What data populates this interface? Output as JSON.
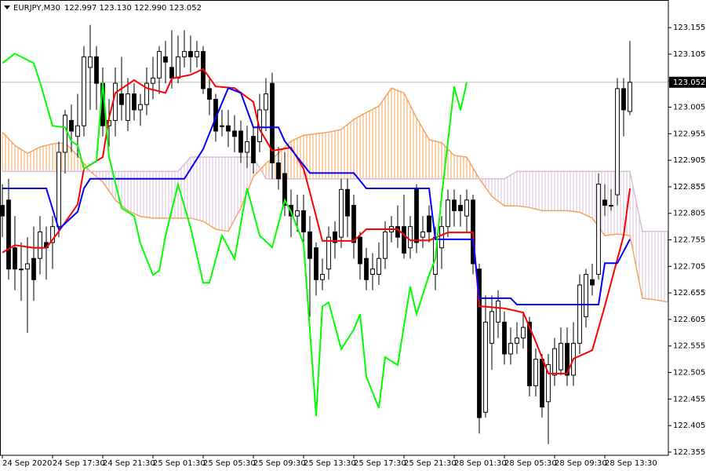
{
  "chart_data": {
    "type": "candlestick",
    "title": "EURJPY,M30",
    "info": "122.997 123.130 122.990 123.052",
    "up_color": "#ffffff",
    "down_color": "#000000",
    "wick_color": "#000000",
    "grid": false,
    "xlim": [
      -0.375,
      106.125
    ],
    "ylim": [
      122.349,
      123.207
    ],
    "yticks": [
      123.155,
      123.105,
      123.055,
      123.005,
      122.955,
      122.905,
      122.855,
      122.805,
      122.755,
      122.705,
      122.655,
      122.605,
      122.555,
      122.505,
      122.455,
      122.405,
      122.355
    ],
    "xticks": [
      {
        "value": 0,
        "label": "24 Sep 2020"
      },
      {
        "value": 8,
        "label": "24 Sep 17:30"
      },
      {
        "value": 16,
        "label": "24 Sep 21:30"
      },
      {
        "value": 24,
        "label": "25 Sep 01:30"
      },
      {
        "value": 32,
        "label": "25 Sep 05:30"
      },
      {
        "value": 40,
        "label": "25 Sep 09:30"
      },
      {
        "value": 48,
        "label": "25 Sep 13:30"
      },
      {
        "value": 56,
        "label": "25 Sep 17:30"
      },
      {
        "value": 64,
        "label": "25 Sep 21:30"
      },
      {
        "value": 72,
        "label": "28 Sep 01:30"
      },
      {
        "value": 80,
        "label": "28 Sep 05:30"
      },
      {
        "value": 88,
        "label": "28 Sep 09:30"
      },
      {
        "value": 96,
        "label": "28 Sep 13:30"
      }
    ],
    "price_line": {
      "value": 123.052,
      "color": "#c0c0c0"
    },
    "x": [
      0,
      1,
      2,
      3,
      4,
      5,
      6,
      7,
      8,
      9,
      10,
      11,
      12,
      13,
      14,
      15,
      16,
      17,
      18,
      19,
      20,
      21,
      22,
      23,
      24,
      25,
      26,
      27,
      28,
      29,
      30,
      31,
      32,
      33,
      34,
      35,
      36,
      37,
      38,
      39,
      40,
      41,
      42,
      43,
      44,
      45,
      46,
      47,
      48,
      49,
      50,
      51,
      52,
      53,
      54,
      55,
      56,
      57,
      58,
      59,
      60,
      61,
      62,
      63,
      64,
      65,
      66,
      67,
      68,
      69,
      70,
      71,
      72,
      73,
      74,
      75,
      76,
      77,
      78,
      79,
      80,
      81,
      82,
      83,
      84,
      85,
      86,
      87,
      88,
      89,
      90,
      91,
      92,
      93,
      94,
      95,
      96,
      97,
      98,
      99,
      100
    ],
    "open": [
      122.82,
      122.83,
      122.74,
      122.7,
      122.7,
      122.72,
      122.72,
      122.75,
      122.75,
      122.78,
      122.92,
      122.98,
      122.95,
      122.97,
      123.08,
      123.1,
      123.05,
      122.97,
      122.98,
      123.03,
      122.98,
      123.03,
      123.0,
      123.01,
      123.05,
      123.06,
      123.1,
      123.08,
      123.06,
      123.1,
      123.11,
      123.1,
      123.11,
      123.04,
      123.02,
      122.97,
      122.97,
      122.96,
      122.96,
      122.92,
      122.95,
      122.94,
      123.0,
      123.05,
      122.9,
      122.88,
      122.82,
      122.8,
      122.81,
      122.77,
      122.74,
      122.68,
      122.7,
      122.77,
      122.76,
      122.85,
      122.82,
      122.76,
      122.72,
      122.69,
      122.69,
      122.72,
      122.77,
      122.78,
      122.78,
      122.74,
      122.85,
      122.76,
      122.8,
      122.69,
      122.74,
      122.78,
      122.83,
      122.82,
      122.8,
      122.83,
      122.7,
      122.43,
      122.56,
      122.6,
      122.6,
      122.54,
      122.56,
      122.57,
      122.6,
      122.48,
      122.53,
      122.45,
      122.5,
      122.51,
      122.56,
      122.5,
      122.56,
      122.61,
      122.68,
      122.69,
      122.83,
      122.82,
      122.84,
      123.04,
      122.997
    ],
    "high": [
      122.86,
      122.87,
      122.8,
      122.75,
      122.76,
      122.78,
      122.8,
      122.78,
      122.8,
      122.94,
      123.0,
      123.01,
      123.03,
      123.12,
      123.16,
      123.12,
      123.08,
      123.02,
      123.08,
      123.1,
      123.06,
      123.05,
      123.03,
      123.08,
      123.1,
      123.12,
      123.13,
      123.15,
      123.14,
      123.15,
      123.14,
      123.13,
      123.12,
      123.06,
      123.03,
      123.0,
      123.0,
      122.99,
      122.98,
      122.97,
      122.97,
      123.03,
      123.06,
      123.07,
      122.93,
      122.92,
      122.85,
      122.84,
      122.84,
      122.8,
      122.75,
      122.72,
      122.78,
      122.79,
      122.87,
      122.87,
      122.84,
      122.77,
      122.74,
      122.73,
      122.75,
      122.79,
      122.8,
      122.82,
      122.84,
      122.8,
      122.86,
      122.8,
      122.82,
      122.78,
      122.8,
      122.85,
      122.85,
      122.84,
      122.85,
      122.84,
      122.71,
      122.65,
      122.65,
      122.66,
      122.62,
      122.59,
      122.6,
      122.62,
      122.61,
      122.55,
      122.54,
      122.54,
      122.57,
      122.59,
      122.59,
      122.6,
      122.69,
      122.7,
      122.71,
      122.88,
      122.86,
      122.85,
      123.06,
      123.06,
      123.13
    ],
    "low": [
      122.76,
      122.68,
      122.66,
      122.64,
      122.58,
      122.64,
      122.69,
      122.68,
      122.7,
      122.76,
      122.88,
      122.92,
      122.91,
      122.95,
      123.0,
      123.0,
      122.95,
      122.93,
      122.95,
      122.98,
      122.96,
      122.98,
      122.97,
      122.99,
      123.02,
      123.03,
      123.05,
      123.04,
      123.05,
      123.08,
      123.07,
      123.08,
      123.03,
      122.99,
      122.94,
      122.95,
      122.93,
      122.92,
      122.9,
      122.89,
      122.88,
      122.92,
      122.96,
      122.87,
      122.85,
      122.8,
      122.76,
      122.77,
      122.74,
      122.61,
      122.65,
      122.66,
      122.68,
      122.72,
      122.74,
      122.76,
      122.72,
      122.68,
      122.66,
      122.66,
      122.67,
      122.7,
      122.75,
      122.74,
      122.72,
      122.72,
      122.73,
      122.74,
      122.75,
      122.66,
      122.7,
      122.76,
      122.78,
      122.78,
      122.77,
      122.69,
      122.39,
      122.42,
      122.51,
      122.57,
      122.52,
      122.52,
      122.54,
      122.55,
      122.46,
      122.46,
      122.42,
      122.37,
      122.48,
      122.5,
      122.48,
      122.48,
      122.54,
      122.59,
      122.65,
      122.68,
      122.8,
      122.81,
      122.82,
      122.95,
      122.99
    ],
    "close": [
      122.8,
      122.7,
      122.7,
      122.7,
      122.71,
      122.68,
      122.77,
      122.74,
      122.78,
      122.92,
      122.99,
      122.96,
      122.97,
      123.1,
      123.1,
      123.05,
      122.97,
      122.98,
      123.05,
      123.01,
      123.03,
      123.0,
      123.01,
      123.05,
      123.06,
      123.11,
      123.09,
      123.06,
      123.1,
      123.11,
      123.1,
      123.11,
      123.04,
      123.02,
      122.96,
      122.97,
      122.96,
      122.95,
      122.92,
      122.94,
      122.9,
      123.0,
      123.03,
      122.9,
      122.87,
      122.82,
      122.8,
      122.81,
      122.77,
      122.72,
      122.68,
      122.69,
      122.76,
      122.75,
      122.85,
      122.8,
      122.75,
      122.71,
      122.68,
      122.7,
      122.72,
      122.77,
      122.78,
      122.76,
      122.73,
      122.78,
      122.75,
      122.77,
      122.77,
      122.76,
      122.78,
      122.83,
      122.81,
      122.81,
      122.83,
      122.71,
      122.42,
      122.6,
      122.62,
      122.64,
      122.54,
      122.56,
      122.57,
      122.59,
      122.48,
      122.53,
      122.44,
      122.52,
      122.55,
      122.56,
      122.5,
      122.56,
      122.67,
      122.69,
      122.67,
      122.86,
      122.82,
      122.82,
      123.04,
      123.0,
      123.052
    ],
    "cloud": {
      "x": [
        0,
        2,
        4,
        6,
        8,
        10,
        12,
        14,
        16,
        18,
        20,
        22,
        24,
        26,
        28,
        30,
        32,
        34,
        36,
        38,
        40,
        42,
        44,
        46,
        48,
        50,
        52,
        54,
        56,
        58,
        60,
        62,
        64,
        66,
        68,
        70,
        72,
        74,
        76,
        78,
        80,
        82,
        84,
        86,
        88,
        90,
        92,
        94,
        96,
        98,
        100,
        102,
        104,
        106
      ],
      "senkou_a": {
        "color": "#f4a460",
        "values": [
          122.958,
          122.933,
          122.918,
          122.93,
          122.936,
          122.938,
          122.914,
          122.884,
          122.864,
          122.83,
          122.81,
          122.799,
          122.796,
          122.796,
          122.796,
          122.796,
          122.79,
          122.775,
          122.771,
          122.815,
          122.874,
          122.899,
          122.918,
          122.941,
          122.952,
          122.955,
          122.958,
          122.963,
          122.982,
          122.995,
          123.007,
          123.041,
          123.032,
          122.985,
          122.944,
          122.938,
          122.914,
          122.911,
          122.87,
          122.837,
          122.819,
          122.819,
          122.816,
          122.81,
          122.81,
          122.81,
          122.807,
          122.796,
          122.763,
          122.766,
          122.763,
          122.645,
          122.642,
          122.638
        ]
      },
      "senkou_b": {
        "color": "#d8bfd8",
        "values": [
          122.884,
          122.884,
          122.884,
          122.884,
          122.884,
          122.884,
          122.884,
          122.884,
          122.884,
          122.884,
          122.884,
          122.884,
          122.884,
          122.884,
          122.884,
          122.911,
          122.911,
          122.911,
          122.911,
          122.911,
          122.911,
          122.87,
          122.87,
          122.87,
          122.87,
          122.87,
          122.87,
          122.87,
          122.87,
          122.87,
          122.87,
          122.87,
          122.87,
          122.87,
          122.87,
          122.87,
          122.87,
          122.87,
          122.87,
          122.87,
          122.87,
          122.884,
          122.884,
          122.884,
          122.884,
          122.884,
          122.884,
          122.884,
          122.884,
          122.884,
          122.884,
          122.771,
          122.771,
          122.771
        ]
      }
    },
    "lines": [
      {
        "color": "#ff0000",
        "x": [
          0,
          2,
          5,
          7,
          9,
          12,
          13,
          16,
          17,
          18,
          21,
          23,
          26,
          27,
          30,
          32,
          34,
          37,
          40,
          41,
          43,
          46,
          48,
          49,
          51,
          56,
          58,
          63,
          65,
          68,
          71,
          75,
          76,
          80,
          83,
          85,
          87,
          90,
          91,
          94,
          96,
          99,
          100
        ],
        "values": [
          122.731,
          122.745,
          122.74,
          122.74,
          122.771,
          122.822,
          122.889,
          122.911,
          122.985,
          123.032,
          123.056,
          123.041,
          123.032,
          123.059,
          123.066,
          123.077,
          123.044,
          123.041,
          123.015,
          122.963,
          122.923,
          122.929,
          122.889,
          122.845,
          122.753,
          122.753,
          122.775,
          122.775,
          122.754,
          122.754,
          122.769,
          122.769,
          122.63,
          122.626,
          122.618,
          122.563,
          122.503,
          122.503,
          122.531,
          122.547,
          122.63,
          122.763,
          122.852
        ]
      },
      {
        "color": "#0000ff",
        "x": [
          0,
          7,
          9,
          12,
          13,
          14,
          29,
          32,
          34,
          36,
          38,
          40,
          44,
          45,
          49,
          56,
          58,
          68,
          69,
          75,
          76,
          81,
          82,
          95,
          96,
          98,
          100
        ],
        "values": [
          122.852,
          122.852,
          122.775,
          122.808,
          122.852,
          122.87,
          122.87,
          122.926,
          122.985,
          123.041,
          123.032,
          122.967,
          122.967,
          122.941,
          122.881,
          122.881,
          122.852,
          122.852,
          122.756,
          122.756,
          122.645,
          122.645,
          122.633,
          122.633,
          122.711,
          122.711,
          122.756
        ]
      },
      {
        "color": "#00ff00",
        "x": [
          0,
          2,
          3,
          5,
          6,
          8,
          10,
          11,
          12,
          13,
          15,
          16,
          17,
          19,
          21,
          22,
          24,
          25,
          26,
          28,
          30,
          32,
          33,
          35,
          37,
          39,
          41,
          43,
          45,
          46,
          48,
          50,
          51,
          52,
          54,
          56,
          57,
          58,
          60,
          61,
          63,
          65,
          66,
          68,
          69,
          70,
          72,
          73,
          74
        ],
        "values": [
          123.088,
          123.106,
          123.1,
          123.088,
          123.052,
          122.97,
          122.967,
          122.941,
          122.933,
          122.889,
          122.904,
          123.052,
          122.911,
          122.815,
          122.8,
          122.748,
          122.689,
          122.697,
          122.763,
          122.859,
          122.778,
          122.674,
          122.674,
          122.763,
          122.719,
          122.852,
          122.763,
          122.741,
          122.83,
          122.808,
          122.748,
          122.423,
          122.63,
          122.637,
          122.549,
          122.586,
          122.615,
          122.497,
          122.438,
          122.534,
          122.519,
          122.667,
          122.615,
          122.689,
          122.719,
          122.837,
          123.044,
          122.999,
          123.052
        ]
      }
    ]
  }
}
